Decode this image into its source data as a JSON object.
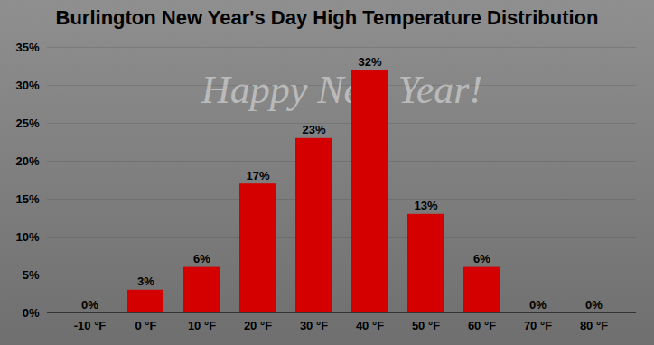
{
  "chart_data": {
    "type": "bar",
    "title": "Burlington New Year's Day High Temperature Distribution",
    "annotations": [
      "Happy New Year!"
    ],
    "categories": [
      "-10 °F",
      "0 °F",
      "10 °F",
      "20 °F",
      "30 °F",
      "40 °F",
      "50 °F",
      "60 °F",
      "70 °F",
      "80 °F"
    ],
    "values": [
      0,
      3,
      6,
      17,
      23,
      32,
      13,
      6,
      0,
      0
    ],
    "value_labels": [
      "0%",
      "3%",
      "6%",
      "17%",
      "23%",
      "32%",
      "13%",
      "6%",
      "0%",
      "0%"
    ],
    "data_labels": true,
    "color": "#d40000",
    "ylim": [
      0,
      35
    ],
    "yticks": [
      {
        "value": 0,
        "label": "0%"
      },
      {
        "value": 5,
        "label": "5%"
      },
      {
        "value": 10,
        "label": "10%"
      },
      {
        "value": 15,
        "label": "15%"
      },
      {
        "value": 20,
        "label": "20%"
      },
      {
        "value": 25,
        "label": "25%"
      },
      {
        "value": 30,
        "label": "30%"
      },
      {
        "value": 35,
        "label": "35%"
      }
    ],
    "grid": true
  }
}
